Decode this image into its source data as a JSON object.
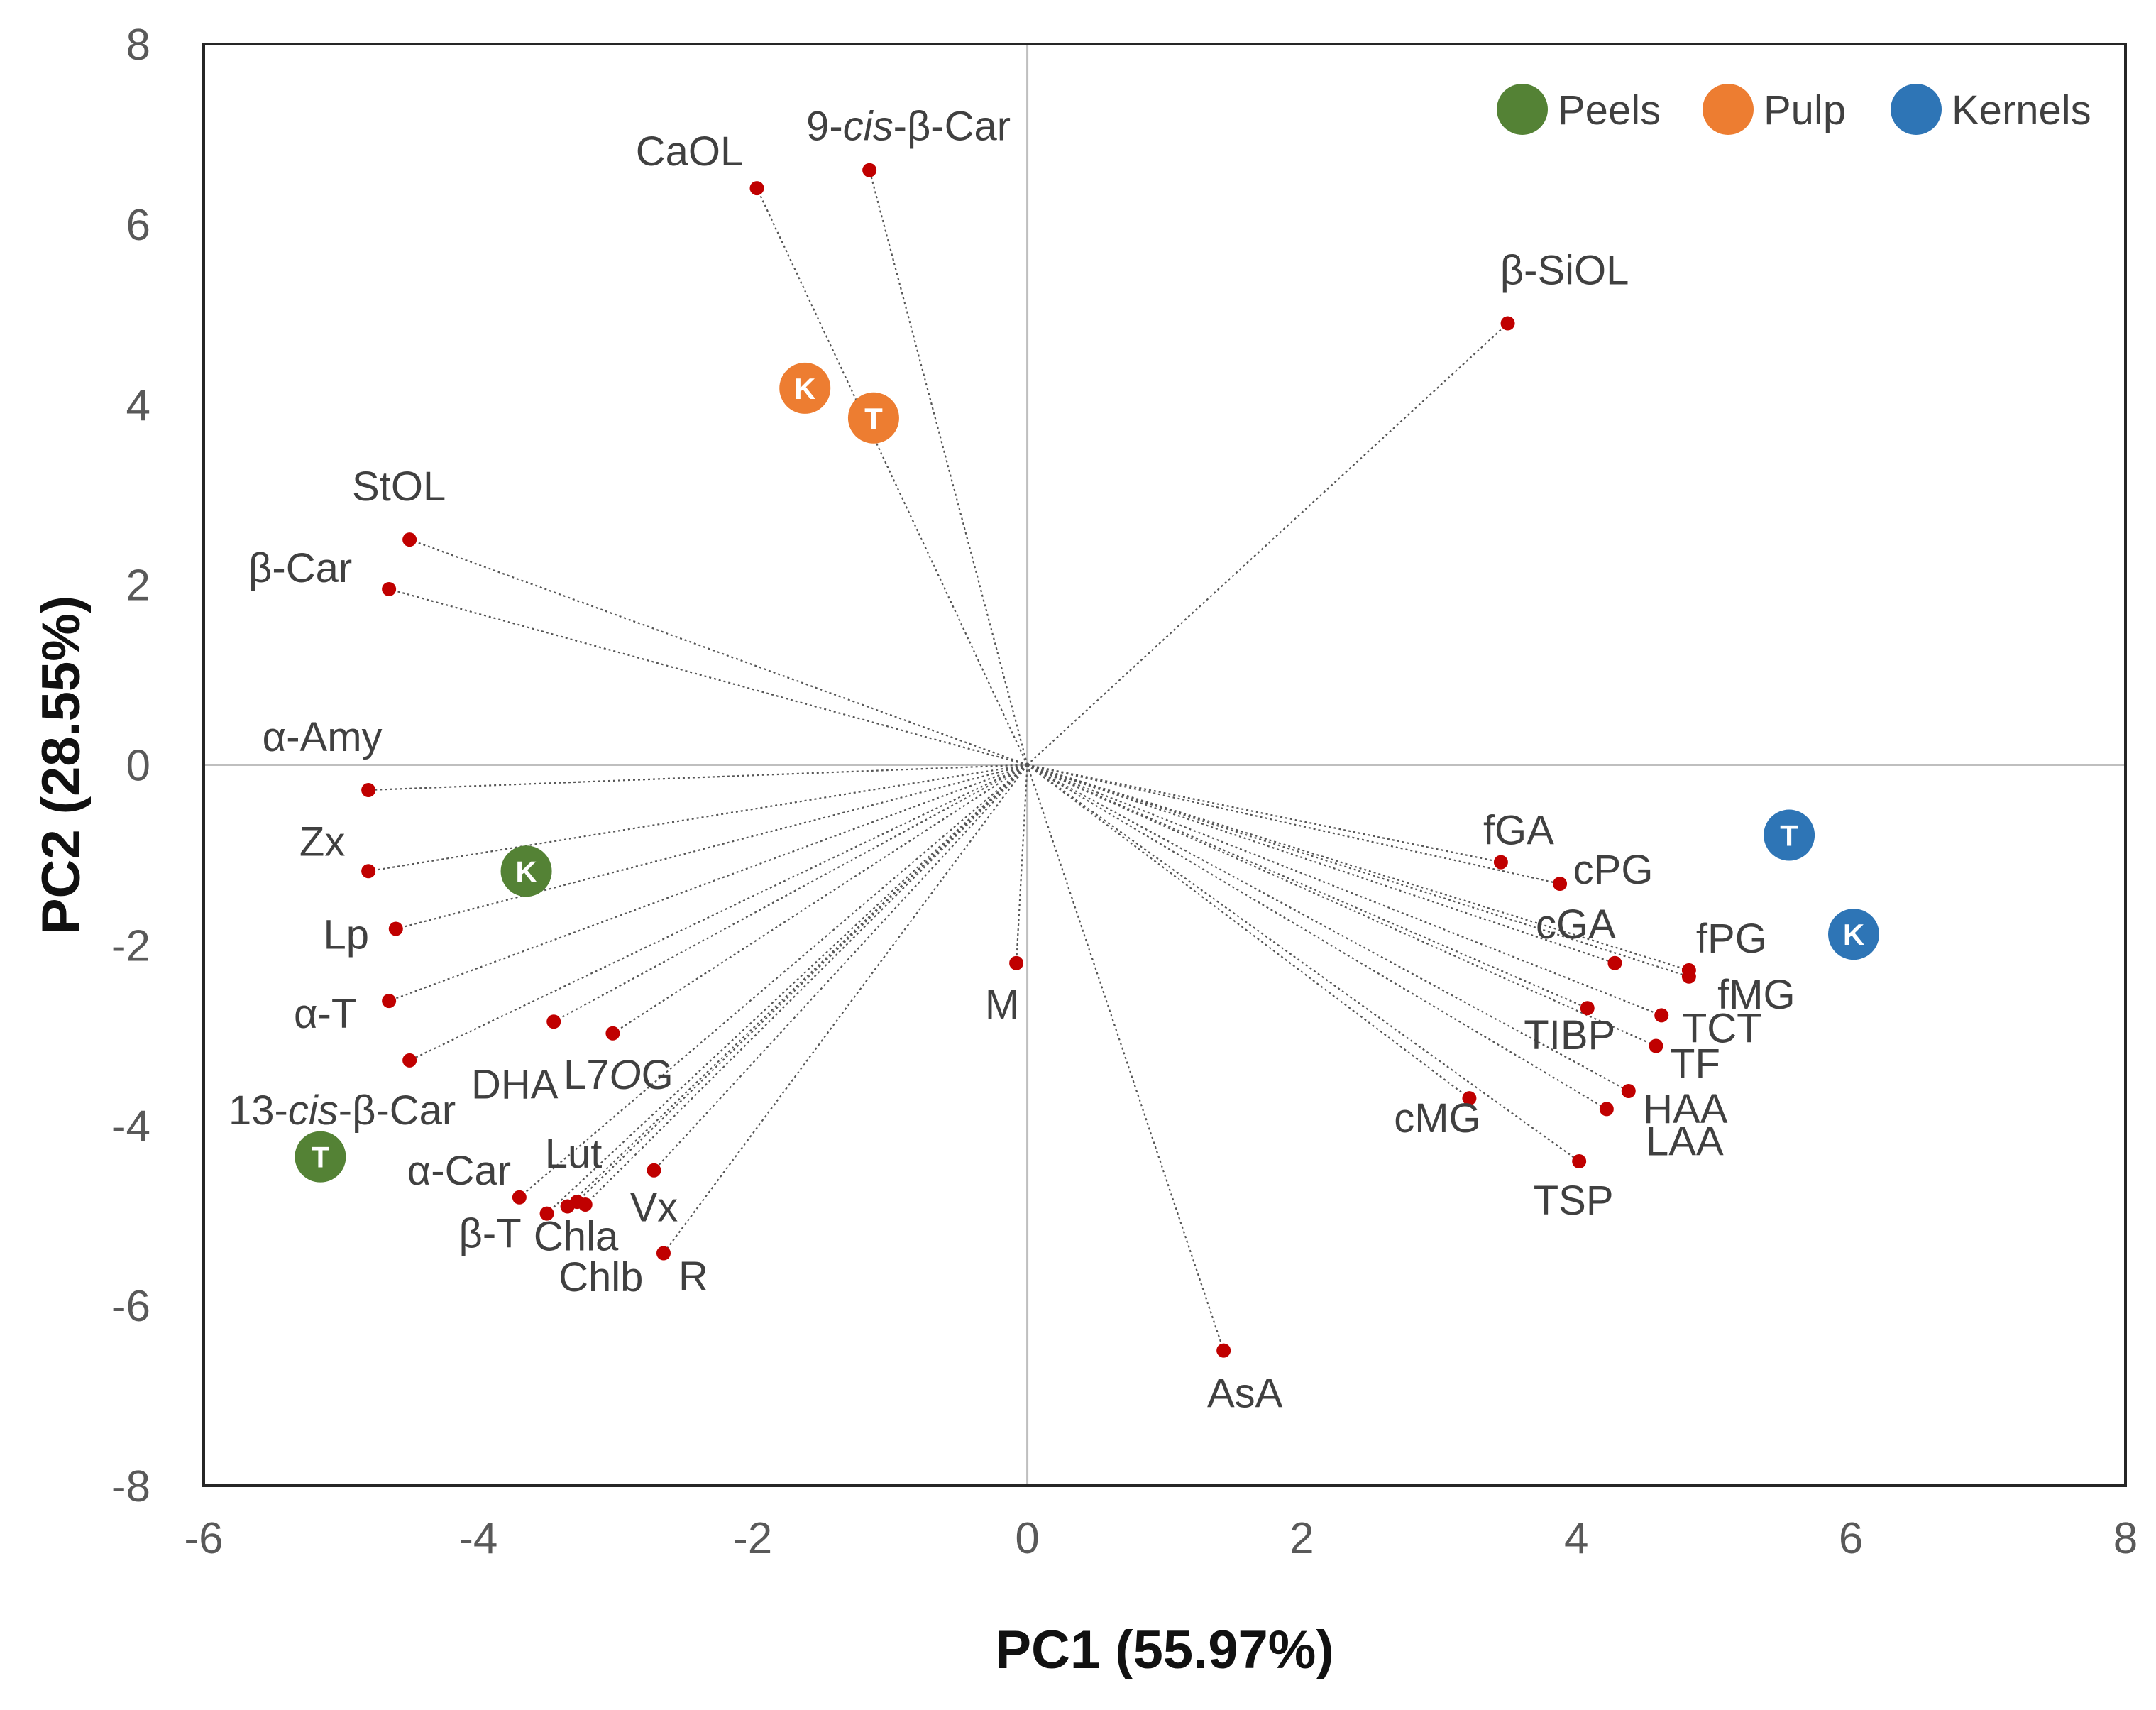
{
  "chart_data": {
    "type": "scatter",
    "title": "",
    "xlabel": "PC1 (55.97%)",
    "ylabel": "PC2 (28.55%)",
    "xlim": [
      -6,
      8
    ],
    "ylim": [
      -8,
      8
    ],
    "xticks": [
      -6,
      -4,
      -2,
      0,
      2,
      4,
      6,
      8
    ],
    "yticks": [
      -8,
      -6,
      -4,
      -2,
      0,
      2,
      4,
      6,
      8
    ],
    "grid": false,
    "legend_position": "top-right",
    "vector_color": "#c00000",
    "loadings": [
      {
        "name": "CaOL",
        "x": -1.97,
        "y": 6.4
      },
      {
        "name": "9-cis-β-Car",
        "x": -1.15,
        "y": 6.6
      },
      {
        "name": "β-SiOL",
        "x": 3.5,
        "y": 4.9
      },
      {
        "name": "StOL",
        "x": -4.5,
        "y": 2.5
      },
      {
        "name": "β-Car",
        "x": -4.65,
        "y": 1.95
      },
      {
        "name": "α-Amy",
        "x": -4.8,
        "y": -0.28
      },
      {
        "name": "Zx",
        "x": -4.8,
        "y": -1.18
      },
      {
        "name": "Lp",
        "x": -4.6,
        "y": -1.82
      },
      {
        "name": "α-T",
        "x": -4.65,
        "y": -2.62
      },
      {
        "name": "13-cis-β-Car",
        "x": -4.5,
        "y": -3.28
      },
      {
        "name": "DHA",
        "x": -3.45,
        "y": -2.85
      },
      {
        "name": "L7OG",
        "x": -3.02,
        "y": -2.98
      },
      {
        "name": "α-Car",
        "x": -3.7,
        "y": -4.8
      },
      {
        "name": "β-T",
        "x": -3.5,
        "y": -4.98
      },
      {
        "name": "Lut",
        "x": -3.28,
        "y": -4.85
      },
      {
        "name": "Chla",
        "x": -3.35,
        "y": -4.9
      },
      {
        "name": "Chlb",
        "x": -3.22,
        "y": -4.88
      },
      {
        "name": "Vx",
        "x": -2.72,
        "y": -4.5
      },
      {
        "name": "R",
        "x": -2.65,
        "y": -5.42
      },
      {
        "name": "M",
        "x": -0.08,
        "y": -2.2
      },
      {
        "name": "AsA",
        "x": 1.43,
        "y": -6.5
      },
      {
        "name": "fGA",
        "x": 3.45,
        "y": -1.08
      },
      {
        "name": "cPG",
        "x": 3.88,
        "y": -1.32
      },
      {
        "name": "cGA",
        "x": 4.28,
        "y": -2.2
      },
      {
        "name": "fPG",
        "x": 4.82,
        "y": -2.28
      },
      {
        "name": "fMG",
        "x": 4.82,
        "y": -2.35
      },
      {
        "name": "TIBP",
        "x": 4.08,
        "y": -2.7
      },
      {
        "name": "TCT",
        "x": 4.62,
        "y": -2.78
      },
      {
        "name": "TF",
        "x": 4.58,
        "y": -3.12
      },
      {
        "name": "HAA",
        "x": 4.38,
        "y": -3.62
      },
      {
        "name": "cMG",
        "x": 3.22,
        "y": -3.7
      },
      {
        "name": "LAA",
        "x": 4.22,
        "y": -3.82
      },
      {
        "name": "TSP",
        "x": 4.02,
        "y": -4.4
      }
    ],
    "series": [
      {
        "name": "Peels",
        "color": "#548235",
        "points": [
          {
            "label": "K",
            "x": -3.65,
            "y": -1.18
          },
          {
            "label": "T",
            "x": -5.15,
            "y": -4.35
          }
        ]
      },
      {
        "name": "Pulp",
        "color": "#ed7d31",
        "points": [
          {
            "label": "K",
            "x": -1.62,
            "y": 4.18
          },
          {
            "label": "T",
            "x": -1.12,
            "y": 3.85
          }
        ]
      },
      {
        "name": "Kernels",
        "color": "#2e75b6",
        "points": [
          {
            "label": "T",
            "x": 5.55,
            "y": -0.78
          },
          {
            "label": "K",
            "x": 6.02,
            "y": -1.88
          }
        ]
      }
    ]
  }
}
